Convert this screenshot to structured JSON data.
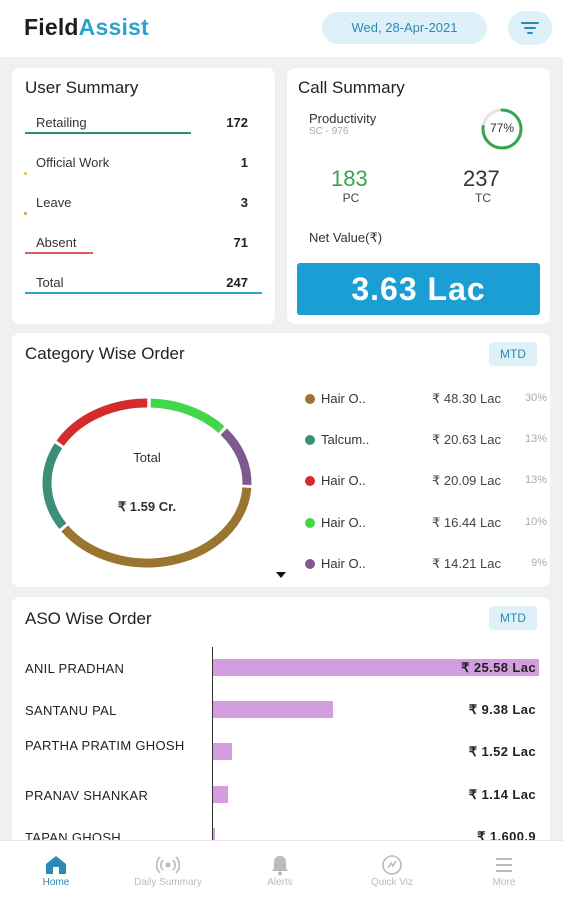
{
  "header": {
    "logo_part1": "Field",
    "logo_part2": "Assist",
    "date": "Wed, 28-Apr-2021",
    "filter_icon": "filter-icon"
  },
  "user_summary": {
    "title": "User Summary",
    "rows": [
      {
        "label": "Retailing",
        "value": "172",
        "color": "#2e8f6f"
      },
      {
        "label": "Official Work",
        "value": "1",
        "color": "#e7c33a"
      },
      {
        "label": "Leave",
        "value": "3",
        "color": "#e39b3b"
      },
      {
        "label": "Absent",
        "value": "71",
        "color": "#e05c5c"
      },
      {
        "label": "Total",
        "value": "247",
        "color": "#2aa3cf"
      }
    ]
  },
  "call_summary": {
    "title": "Call Summary",
    "productivity_label": "Productivity",
    "productivity_sub": "SC - 976",
    "productivity_percent": "77%",
    "productivity_value": 0.77,
    "pc_value": "183",
    "pc_label": "PC",
    "tc_value": "237",
    "tc_label": "TC",
    "net_value_label": "Net Value(₹)",
    "net_value": "3.63 Lac",
    "pc_color": "#37a64a"
  },
  "category_order": {
    "title": "Category Wise Order",
    "mtd_label": "MTD",
    "center_label": "Total",
    "center_value": "₹ 1.59 Cr.",
    "items": [
      {
        "name": "Hair O..",
        "value": "₹ 48.30 Lac",
        "pct": "30%",
        "color": "#9a7530"
      },
      {
        "name": "Talcum..",
        "value": "₹ 20.63 Lac",
        "pct": "13%",
        "color": "#3b8f78"
      },
      {
        "name": "Hair O..",
        "value": "₹ 20.09 Lac",
        "pct": "13%",
        "color": "#d42c2c"
      },
      {
        "name": "Hair O..",
        "value": "₹ 16.44 Lac",
        "pct": "10%",
        "color": "#42d64a"
      },
      {
        "name": "Hair O..",
        "value": "₹ 14.21 Lac",
        "pct": "9%",
        "color": "#7e5a8c"
      }
    ]
  },
  "aso_order": {
    "title": "ASO Wise Order",
    "mtd_label": "MTD",
    "rows": [
      {
        "name": "ANIL PRADHAN",
        "value": "₹ 25.58 Lac",
        "amount": 25.58
      },
      {
        "name": "SANTANU PAL",
        "value": "₹ 9.38 Lac",
        "amount": 9.38
      },
      {
        "name": "PARTHA PRATIM GHOSH",
        "value": "₹ 1.52 Lac",
        "amount": 1.52
      },
      {
        "name": "PRANAV SHANKAR",
        "value": "₹ 1.14 Lac",
        "amount": 1.14
      },
      {
        "name": "TAPAN GHOSH",
        "value": "₹ 1,600.9",
        "amount": 0.016
      }
    ]
  },
  "bottom_nav": [
    {
      "label": "Home",
      "icon": "home-icon"
    },
    {
      "label": "Daily Summary",
      "icon": "broadcast-icon"
    },
    {
      "label": "Alerts",
      "icon": "bell-icon"
    },
    {
      "label": "Quick Viz",
      "icon": "gauge-icon"
    },
    {
      "label": "More",
      "icon": "menu-icon"
    }
  ],
  "accent_color": "#2aa3cf"
}
